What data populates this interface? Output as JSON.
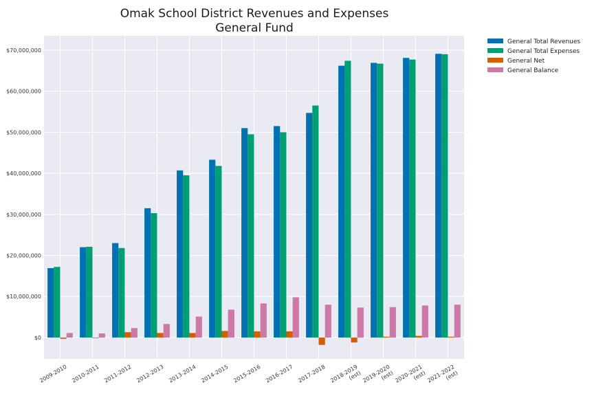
{
  "chart_data": {
    "type": "bar",
    "title": [
      "Omak School District Revenues and Expenses",
      "General Fund"
    ],
    "xlabel": "",
    "ylabel": "",
    "categories": [
      [
        "2009-2010"
      ],
      [
        "2010-2011"
      ],
      [
        "2011-2012"
      ],
      [
        "2012-2013"
      ],
      [
        "2013-2014"
      ],
      [
        "2014-2015"
      ],
      [
        "2015-2016"
      ],
      [
        "2016-2017"
      ],
      [
        "2017-2018"
      ],
      [
        "2018-2019",
        "(est)"
      ],
      [
        "2019-2020",
        "(est)"
      ],
      [
        "2020-2021",
        "(est)"
      ],
      [
        "2021-2022",
        "(est)"
      ]
    ],
    "ylim": [
      -5200000,
      73500000
    ],
    "yticks": [
      0,
      10000000,
      20000000,
      30000000,
      40000000,
      50000000,
      60000000,
      70000000
    ],
    "ytick_labels": [
      "$0",
      "$10,000,000",
      "$20,000,000",
      "$30,000,000",
      "$40,000,000",
      "$50,000,000",
      "$60,000,000",
      "$70,000,000"
    ],
    "grid": true,
    "legend_position": "outside-top-right",
    "series": [
      {
        "name": "General Total Revenues",
        "color": "#0072b2",
        "values": [
          16900000,
          22000000,
          23000000,
          31500000,
          40700000,
          43300000,
          51000000,
          51500000,
          54700000,
          66200000,
          66900000,
          68100000,
          69100000
        ]
      },
      {
        "name": "General Total Expenses",
        "color": "#009e73",
        "values": [
          17200000,
          22100000,
          21800000,
          30300000,
          39500000,
          41800000,
          49500000,
          50000000,
          56500000,
          67400000,
          66700000,
          67700000,
          69000000
        ]
      },
      {
        "name": "General Net",
        "color": "#d55e00",
        "values": [
          -300000,
          -100000,
          1300000,
          1100000,
          1100000,
          1600000,
          1500000,
          1500000,
          -1800000,
          -1200000,
          200000,
          400000,
          200000
        ]
      },
      {
        "name": "General Balance",
        "color": "#cc79a7",
        "values": [
          1100000,
          1000000,
          2300000,
          3300000,
          5100000,
          6800000,
          8300000,
          9800000,
          8000000,
          7300000,
          7400000,
          7800000,
          8000000
        ]
      }
    ]
  }
}
